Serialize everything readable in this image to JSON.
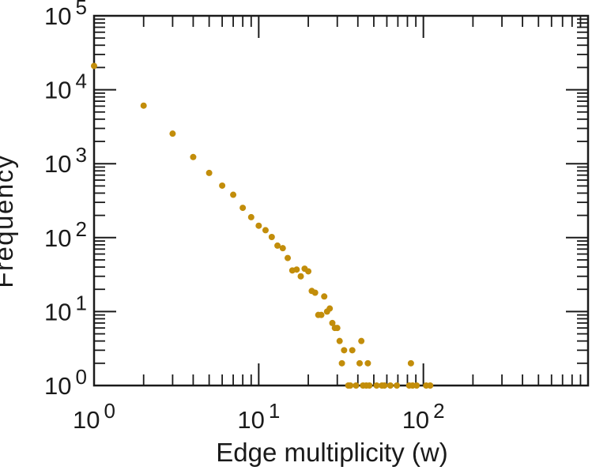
{
  "chart_data": {
    "type": "scatter",
    "title": "",
    "xlabel": "Edge multiplicity (w)",
    "ylabel": "Frequency",
    "xscale": "log",
    "yscale": "log",
    "xlim": [
      1,
      1000
    ],
    "ylim": [
      1,
      100000
    ],
    "grid": false,
    "legend": null,
    "background": "#ffffff",
    "axis_color": "#1a1a1a",
    "point_color": "#c28d0a",
    "x_ticks": [
      {
        "value": 1,
        "base": "10",
        "exp": "0"
      },
      {
        "value": 10,
        "base": "10",
        "exp": "1"
      },
      {
        "value": 100,
        "base": "10",
        "exp": "2"
      }
    ],
    "y_ticks": [
      {
        "value": 1,
        "base": "10",
        "exp": "0"
      },
      {
        "value": 10,
        "base": "10",
        "exp": "1"
      },
      {
        "value": 100,
        "base": "10",
        "exp": "2"
      },
      {
        "value": 1000,
        "base": "10",
        "exp": "3"
      },
      {
        "value": 10000,
        "base": "10",
        "exp": "4"
      },
      {
        "value": 100000,
        "base": "10",
        "exp": "5"
      }
    ],
    "points": [
      [
        1,
        21000
      ],
      [
        2,
        6100
      ],
      [
        3,
        2550
      ],
      [
        4,
        1230
      ],
      [
        5,
        750
      ],
      [
        6,
        505
      ],
      [
        7,
        380
      ],
      [
        8,
        253
      ],
      [
        9,
        189
      ],
      [
        10,
        145
      ],
      [
        11,
        126
      ],
      [
        12,
        102
      ],
      [
        13,
        78
      ],
      [
        14,
        72
      ],
      [
        15,
        53
      ],
      [
        16,
        36
      ],
      [
        17,
        37
      ],
      [
        18,
        30
      ],
      [
        19,
        38
      ],
      [
        20,
        35
      ],
      [
        21,
        19
      ],
      [
        22,
        18
      ],
      [
        23,
        9
      ],
      [
        24,
        9
      ],
      [
        25,
        16
      ],
      [
        26,
        10
      ],
      [
        27,
        11
      ],
      [
        28,
        7
      ],
      [
        29,
        6
      ],
      [
        30,
        6
      ],
      [
        31,
        4
      ],
      [
        32,
        2
      ],
      [
        33,
        3
      ],
      [
        35,
        1
      ],
      [
        36,
        1
      ],
      [
        37,
        3
      ],
      [
        39,
        1
      ],
      [
        41,
        2
      ],
      [
        42,
        4
      ],
      [
        43,
        1
      ],
      [
        45,
        1
      ],
      [
        46,
        2
      ],
      [
        47,
        1
      ],
      [
        52,
        1
      ],
      [
        56,
        1
      ],
      [
        58,
        1
      ],
      [
        63,
        1
      ],
      [
        69,
        1
      ],
      [
        82,
        1
      ],
      [
        84,
        2
      ],
      [
        86,
        1
      ],
      [
        91,
        1
      ],
      [
        104,
        1
      ],
      [
        110,
        1
      ]
    ]
  }
}
